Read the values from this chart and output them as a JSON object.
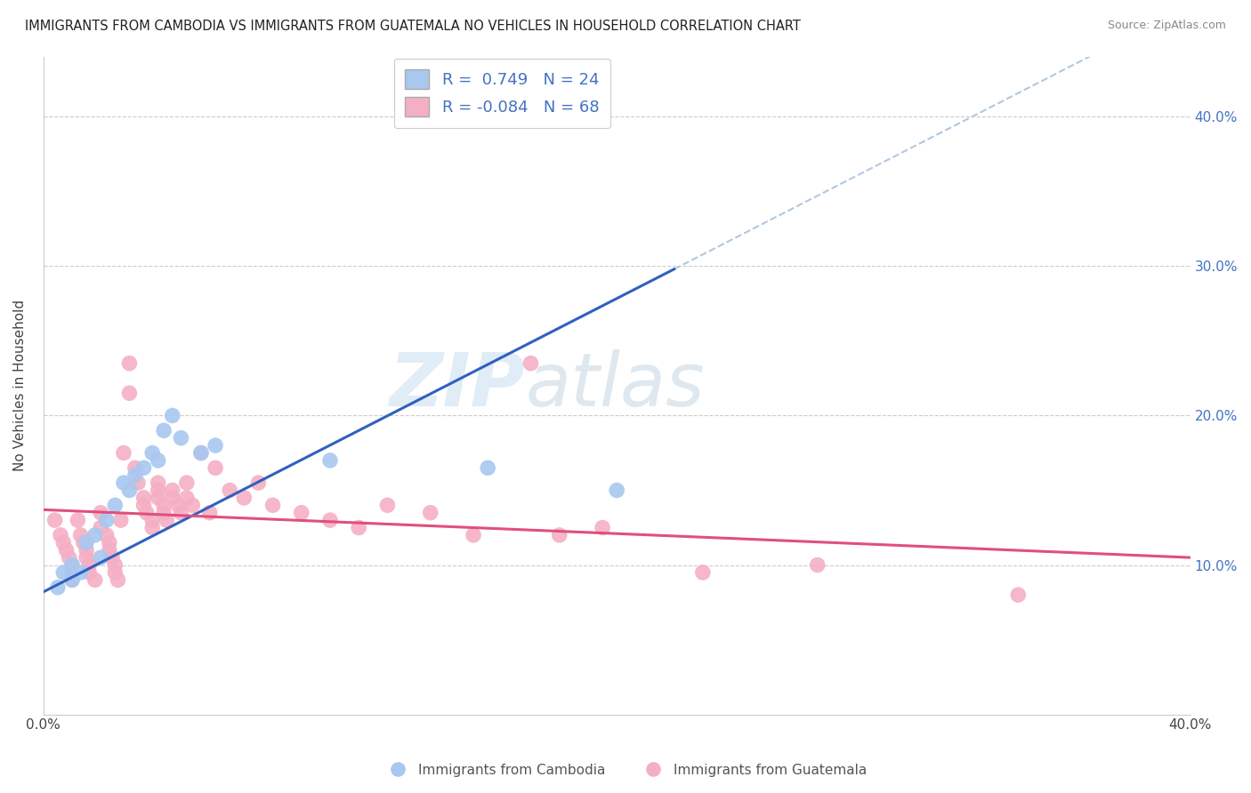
{
  "title": "IMMIGRANTS FROM CAMBODIA VS IMMIGRANTS FROM GUATEMALA NO VEHICLES IN HOUSEHOLD CORRELATION CHART",
  "source": "Source: ZipAtlas.com",
  "ylabel": "No Vehicles in Household",
  "xlim": [
    0.0,
    0.4
  ],
  "ylim": [
    0.0,
    0.44
  ],
  "ytick_vals": [
    0.1,
    0.2,
    0.3,
    0.4
  ],
  "r_cambodia": 0.749,
  "n_cambodia": 24,
  "r_guatemala": -0.084,
  "n_guatemala": 68,
  "color_cambodia": "#a8c8f0",
  "color_guatemala": "#f4afc4",
  "line_color_cambodia": "#3060c0",
  "line_color_guatemala": "#e0507a",
  "dash_color": "#b0c8e0",
  "cambodia_points": [
    [
      0.005,
      0.085
    ],
    [
      0.007,
      0.095
    ],
    [
      0.01,
      0.09
    ],
    [
      0.01,
      0.1
    ],
    [
      0.013,
      0.095
    ],
    [
      0.015,
      0.115
    ],
    [
      0.018,
      0.12
    ],
    [
      0.02,
      0.105
    ],
    [
      0.022,
      0.13
    ],
    [
      0.025,
      0.14
    ],
    [
      0.028,
      0.155
    ],
    [
      0.03,
      0.15
    ],
    [
      0.032,
      0.16
    ],
    [
      0.035,
      0.165
    ],
    [
      0.038,
      0.175
    ],
    [
      0.04,
      0.17
    ],
    [
      0.042,
      0.19
    ],
    [
      0.045,
      0.2
    ],
    [
      0.048,
      0.185
    ],
    [
      0.055,
      0.175
    ],
    [
      0.06,
      0.18
    ],
    [
      0.1,
      0.17
    ],
    [
      0.155,
      0.165
    ],
    [
      0.2,
      0.15
    ]
  ],
  "guatemala_points": [
    [
      0.004,
      0.13
    ],
    [
      0.006,
      0.12
    ],
    [
      0.007,
      0.115
    ],
    [
      0.008,
      0.11
    ],
    [
      0.009,
      0.105
    ],
    [
      0.01,
      0.1
    ],
    [
      0.01,
      0.095
    ],
    [
      0.01,
      0.09
    ],
    [
      0.012,
      0.13
    ],
    [
      0.013,
      0.12
    ],
    [
      0.014,
      0.115
    ],
    [
      0.015,
      0.11
    ],
    [
      0.015,
      0.105
    ],
    [
      0.016,
      0.1
    ],
    [
      0.016,
      0.095
    ],
    [
      0.018,
      0.09
    ],
    [
      0.02,
      0.135
    ],
    [
      0.02,
      0.125
    ],
    [
      0.022,
      0.12
    ],
    [
      0.023,
      0.115
    ],
    [
      0.023,
      0.11
    ],
    [
      0.024,
      0.105
    ],
    [
      0.025,
      0.1
    ],
    [
      0.025,
      0.095
    ],
    [
      0.026,
      0.09
    ],
    [
      0.027,
      0.13
    ],
    [
      0.028,
      0.175
    ],
    [
      0.03,
      0.235
    ],
    [
      0.03,
      0.215
    ],
    [
      0.032,
      0.165
    ],
    [
      0.033,
      0.155
    ],
    [
      0.035,
      0.145
    ],
    [
      0.035,
      0.14
    ],
    [
      0.036,
      0.135
    ],
    [
      0.038,
      0.13
    ],
    [
      0.038,
      0.125
    ],
    [
      0.04,
      0.155
    ],
    [
      0.04,
      0.15
    ],
    [
      0.04,
      0.145
    ],
    [
      0.042,
      0.14
    ],
    [
      0.042,
      0.135
    ],
    [
      0.043,
      0.13
    ],
    [
      0.045,
      0.15
    ],
    [
      0.045,
      0.145
    ],
    [
      0.047,
      0.14
    ],
    [
      0.048,
      0.135
    ],
    [
      0.05,
      0.155
    ],
    [
      0.05,
      0.145
    ],
    [
      0.052,
      0.14
    ],
    [
      0.055,
      0.175
    ],
    [
      0.058,
      0.135
    ],
    [
      0.06,
      0.165
    ],
    [
      0.065,
      0.15
    ],
    [
      0.07,
      0.145
    ],
    [
      0.075,
      0.155
    ],
    [
      0.08,
      0.14
    ],
    [
      0.09,
      0.135
    ],
    [
      0.1,
      0.13
    ],
    [
      0.11,
      0.125
    ],
    [
      0.12,
      0.14
    ],
    [
      0.135,
      0.135
    ],
    [
      0.15,
      0.12
    ],
    [
      0.17,
      0.235
    ],
    [
      0.18,
      0.12
    ],
    [
      0.195,
      0.125
    ],
    [
      0.23,
      0.095
    ],
    [
      0.27,
      0.1
    ],
    [
      0.34,
      0.08
    ]
  ],
  "legend_r_label_1": "R =  0.749   N = 24",
  "legend_r_label_2": "R = -0.084   N = 68",
  "label_cambodia": "Immigrants from Cambodia",
  "label_guatemala": "Immigrants from Guatemala"
}
